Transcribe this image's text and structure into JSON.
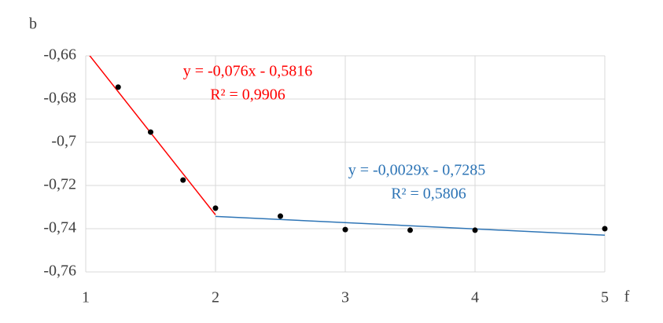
{
  "chart_data": {
    "type": "scatter",
    "x_label": "f",
    "y_label": "b",
    "x": [
      1.25,
      1.5,
      1.75,
      2,
      2.5,
      3,
      3.5,
      4,
      5
    ],
    "values": [
      -0.6745,
      -0.6953,
      -0.7175,
      -0.7305,
      -0.7342,
      -0.7404,
      -0.7407,
      -0.7407,
      -0.74
    ],
    "color": "#000000",
    "xlim": [
      1,
      5
    ],
    "xticks": [
      1,
      2,
      3,
      4,
      5
    ],
    "ylim": [
      -0.76,
      -0.66
    ],
    "yticks": [
      {
        "value": -0.76,
        "label": "-0,76"
      },
      {
        "value": -0.74,
        "label": "-0,74"
      },
      {
        "value": -0.72,
        "label": "-0,72"
      },
      {
        "value": -0.7,
        "label": "-0,7"
      },
      {
        "value": -0.68,
        "label": "-0,68"
      },
      {
        "value": -0.66,
        "label": "-0,66"
      }
    ],
    "grid": true,
    "trendlines": [
      {
        "color": "#ff0000",
        "x": [
          1,
          2
        ],
        "values": [
          -0.6576,
          -0.7336
        ],
        "equation": "y = -0,076x - 0,5816",
        "r_squared": "R² = 0,9906"
      },
      {
        "color": "#2e75b6",
        "x": [
          2,
          5
        ],
        "values": [
          -0.7343,
          -0.743
        ],
        "equation": "y = -0,0029x - 0,7285",
        "r_squared": "R² = 0,5806"
      }
    ]
  }
}
